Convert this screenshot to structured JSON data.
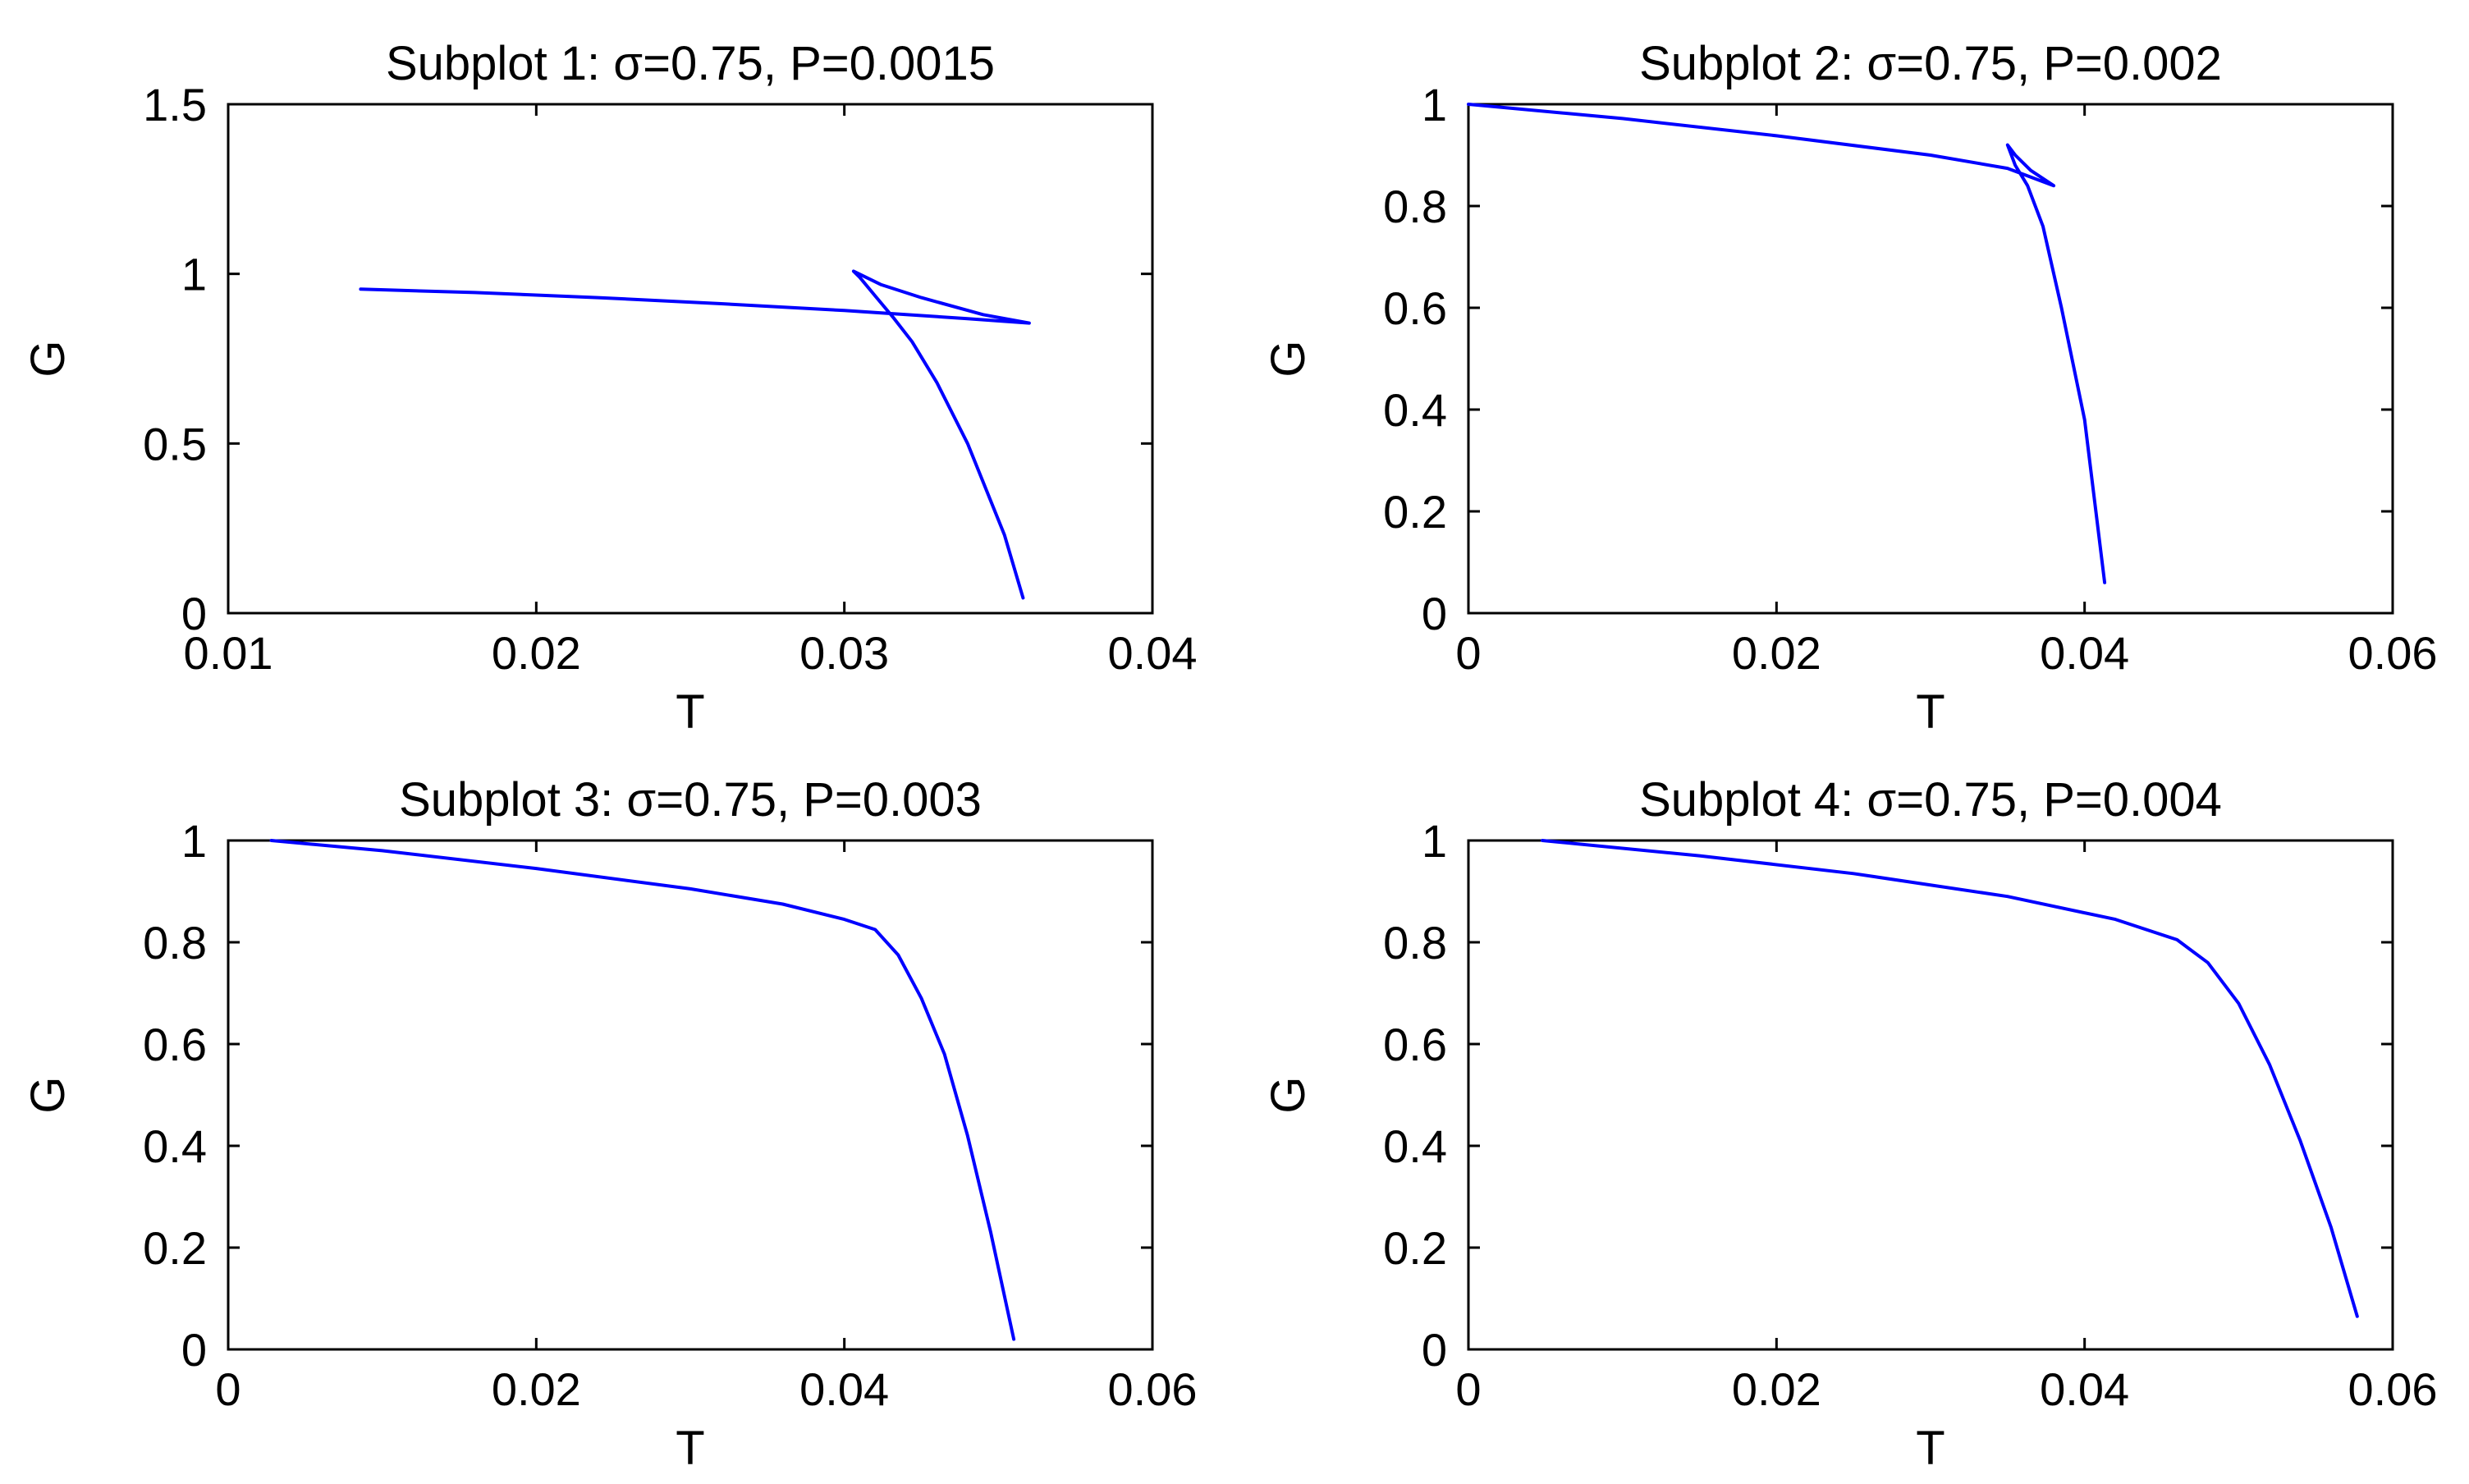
{
  "chart_data": [
    {
      "type": "line",
      "title": "Subplot 1:  σ=0.75, P=0.0015",
      "xlabel": "T",
      "ylabel": "G",
      "xlim": [
        0.01,
        0.04
      ],
      "ylim": [
        0,
        1.5
      ],
      "xticks": [
        0.01,
        0.02,
        0.03,
        0.04
      ],
      "xtick_labels": [
        "0.01",
        "0.02",
        "0.03",
        "0.04"
      ],
      "yticks": [
        0,
        0.5,
        1,
        1.5
      ],
      "ytick_labels": [
        "0",
        "0.5",
        "1",
        "1.5"
      ],
      "grid": false,
      "legend": "none",
      "series": [
        {
          "color": "#0000ff",
          "x": [
            0.0143,
            0.018,
            0.022,
            0.026,
            0.03,
            0.034,
            0.036,
            0.0345,
            0.0325,
            0.0312,
            0.0303,
            0.0305,
            0.031,
            0.0316,
            0.0322,
            0.033,
            0.034,
            0.0352,
            0.0358
          ],
          "y": [
            0.955,
            0.945,
            0.93,
            0.912,
            0.892,
            0.868,
            0.855,
            0.88,
            0.93,
            0.968,
            1.008,
            0.99,
            0.935,
            0.87,
            0.8,
            0.68,
            0.5,
            0.23,
            0.045
          ]
        }
      ]
    },
    {
      "type": "line",
      "title": "Subplot 2:  σ=0.75, P=0.002",
      "xlabel": "T",
      "ylabel": "G",
      "xlim": [
        0,
        0.06
      ],
      "ylim": [
        0,
        1
      ],
      "xticks": [
        0,
        0.02,
        0.04,
        0.06
      ],
      "xtick_labels": [
        "0",
        "0.02",
        "0.04",
        "0.06"
      ],
      "yticks": [
        0,
        0.2,
        0.4,
        0.6,
        0.8,
        1
      ],
      "ytick_labels": [
        "0",
        "0.2",
        "0.4",
        "0.6",
        "0.8",
        "1"
      ],
      "grid": false,
      "legend": "none",
      "series": [
        {
          "color": "#0000ff",
          "x": [
            0.0,
            0.01,
            0.02,
            0.03,
            0.035,
            0.038,
            0.0365,
            0.0355,
            0.035,
            0.0355,
            0.0363,
            0.0373,
            0.0385,
            0.04,
            0.0413
          ],
          "y": [
            1.0,
            0.972,
            0.938,
            0.9,
            0.874,
            0.84,
            0.87,
            0.9,
            0.92,
            0.88,
            0.84,
            0.76,
            0.6,
            0.38,
            0.06
          ]
        }
      ]
    },
    {
      "type": "line",
      "title": "Subplot 3:  σ=0.75, P=0.003",
      "xlabel": "T",
      "ylabel": "G",
      "xlim": [
        0,
        0.06
      ],
      "ylim": [
        0,
        1
      ],
      "xticks": [
        0,
        0.02,
        0.04,
        0.06
      ],
      "xtick_labels": [
        "0",
        "0.02",
        "0.04",
        "0.06"
      ],
      "yticks": [
        0,
        0.2,
        0.4,
        0.6,
        0.8,
        1
      ],
      "ytick_labels": [
        "0",
        "0.2",
        "0.4",
        "0.6",
        "0.8",
        "1"
      ],
      "grid": false,
      "legend": "none",
      "series": [
        {
          "color": "#0000ff",
          "x": [
            0.0028,
            0.01,
            0.02,
            0.03,
            0.036,
            0.04,
            0.042,
            0.0435,
            0.045,
            0.0465,
            0.048,
            0.0495,
            0.051
          ],
          "y": [
            1.0,
            0.98,
            0.945,
            0.905,
            0.875,
            0.845,
            0.825,
            0.775,
            0.69,
            0.58,
            0.42,
            0.23,
            0.02
          ]
        }
      ]
    },
    {
      "type": "line",
      "title": "Subplot 4: σ=0.75, P=0.004",
      "xlabel": "T",
      "ylabel": "G",
      "xlim": [
        0,
        0.06
      ],
      "ylim": [
        0,
        1
      ],
      "xticks": [
        0,
        0.02,
        0.04,
        0.06
      ],
      "xtick_labels": [
        "0",
        "0.02",
        "0.04",
        "0.06"
      ],
      "yticks": [
        0,
        0.2,
        0.4,
        0.6,
        0.8,
        1
      ],
      "ytick_labels": [
        "0",
        "0.2",
        "0.4",
        "0.6",
        "0.8",
        "1"
      ],
      "grid": false,
      "legend": "none",
      "series": [
        {
          "color": "#0000ff",
          "x": [
            0.0048,
            0.015,
            0.025,
            0.035,
            0.042,
            0.046,
            0.048,
            0.05,
            0.052,
            0.054,
            0.056,
            0.0577
          ],
          "y": [
            1.0,
            0.97,
            0.935,
            0.89,
            0.845,
            0.805,
            0.76,
            0.68,
            0.56,
            0.41,
            0.24,
            0.065
          ]
        }
      ]
    }
  ]
}
